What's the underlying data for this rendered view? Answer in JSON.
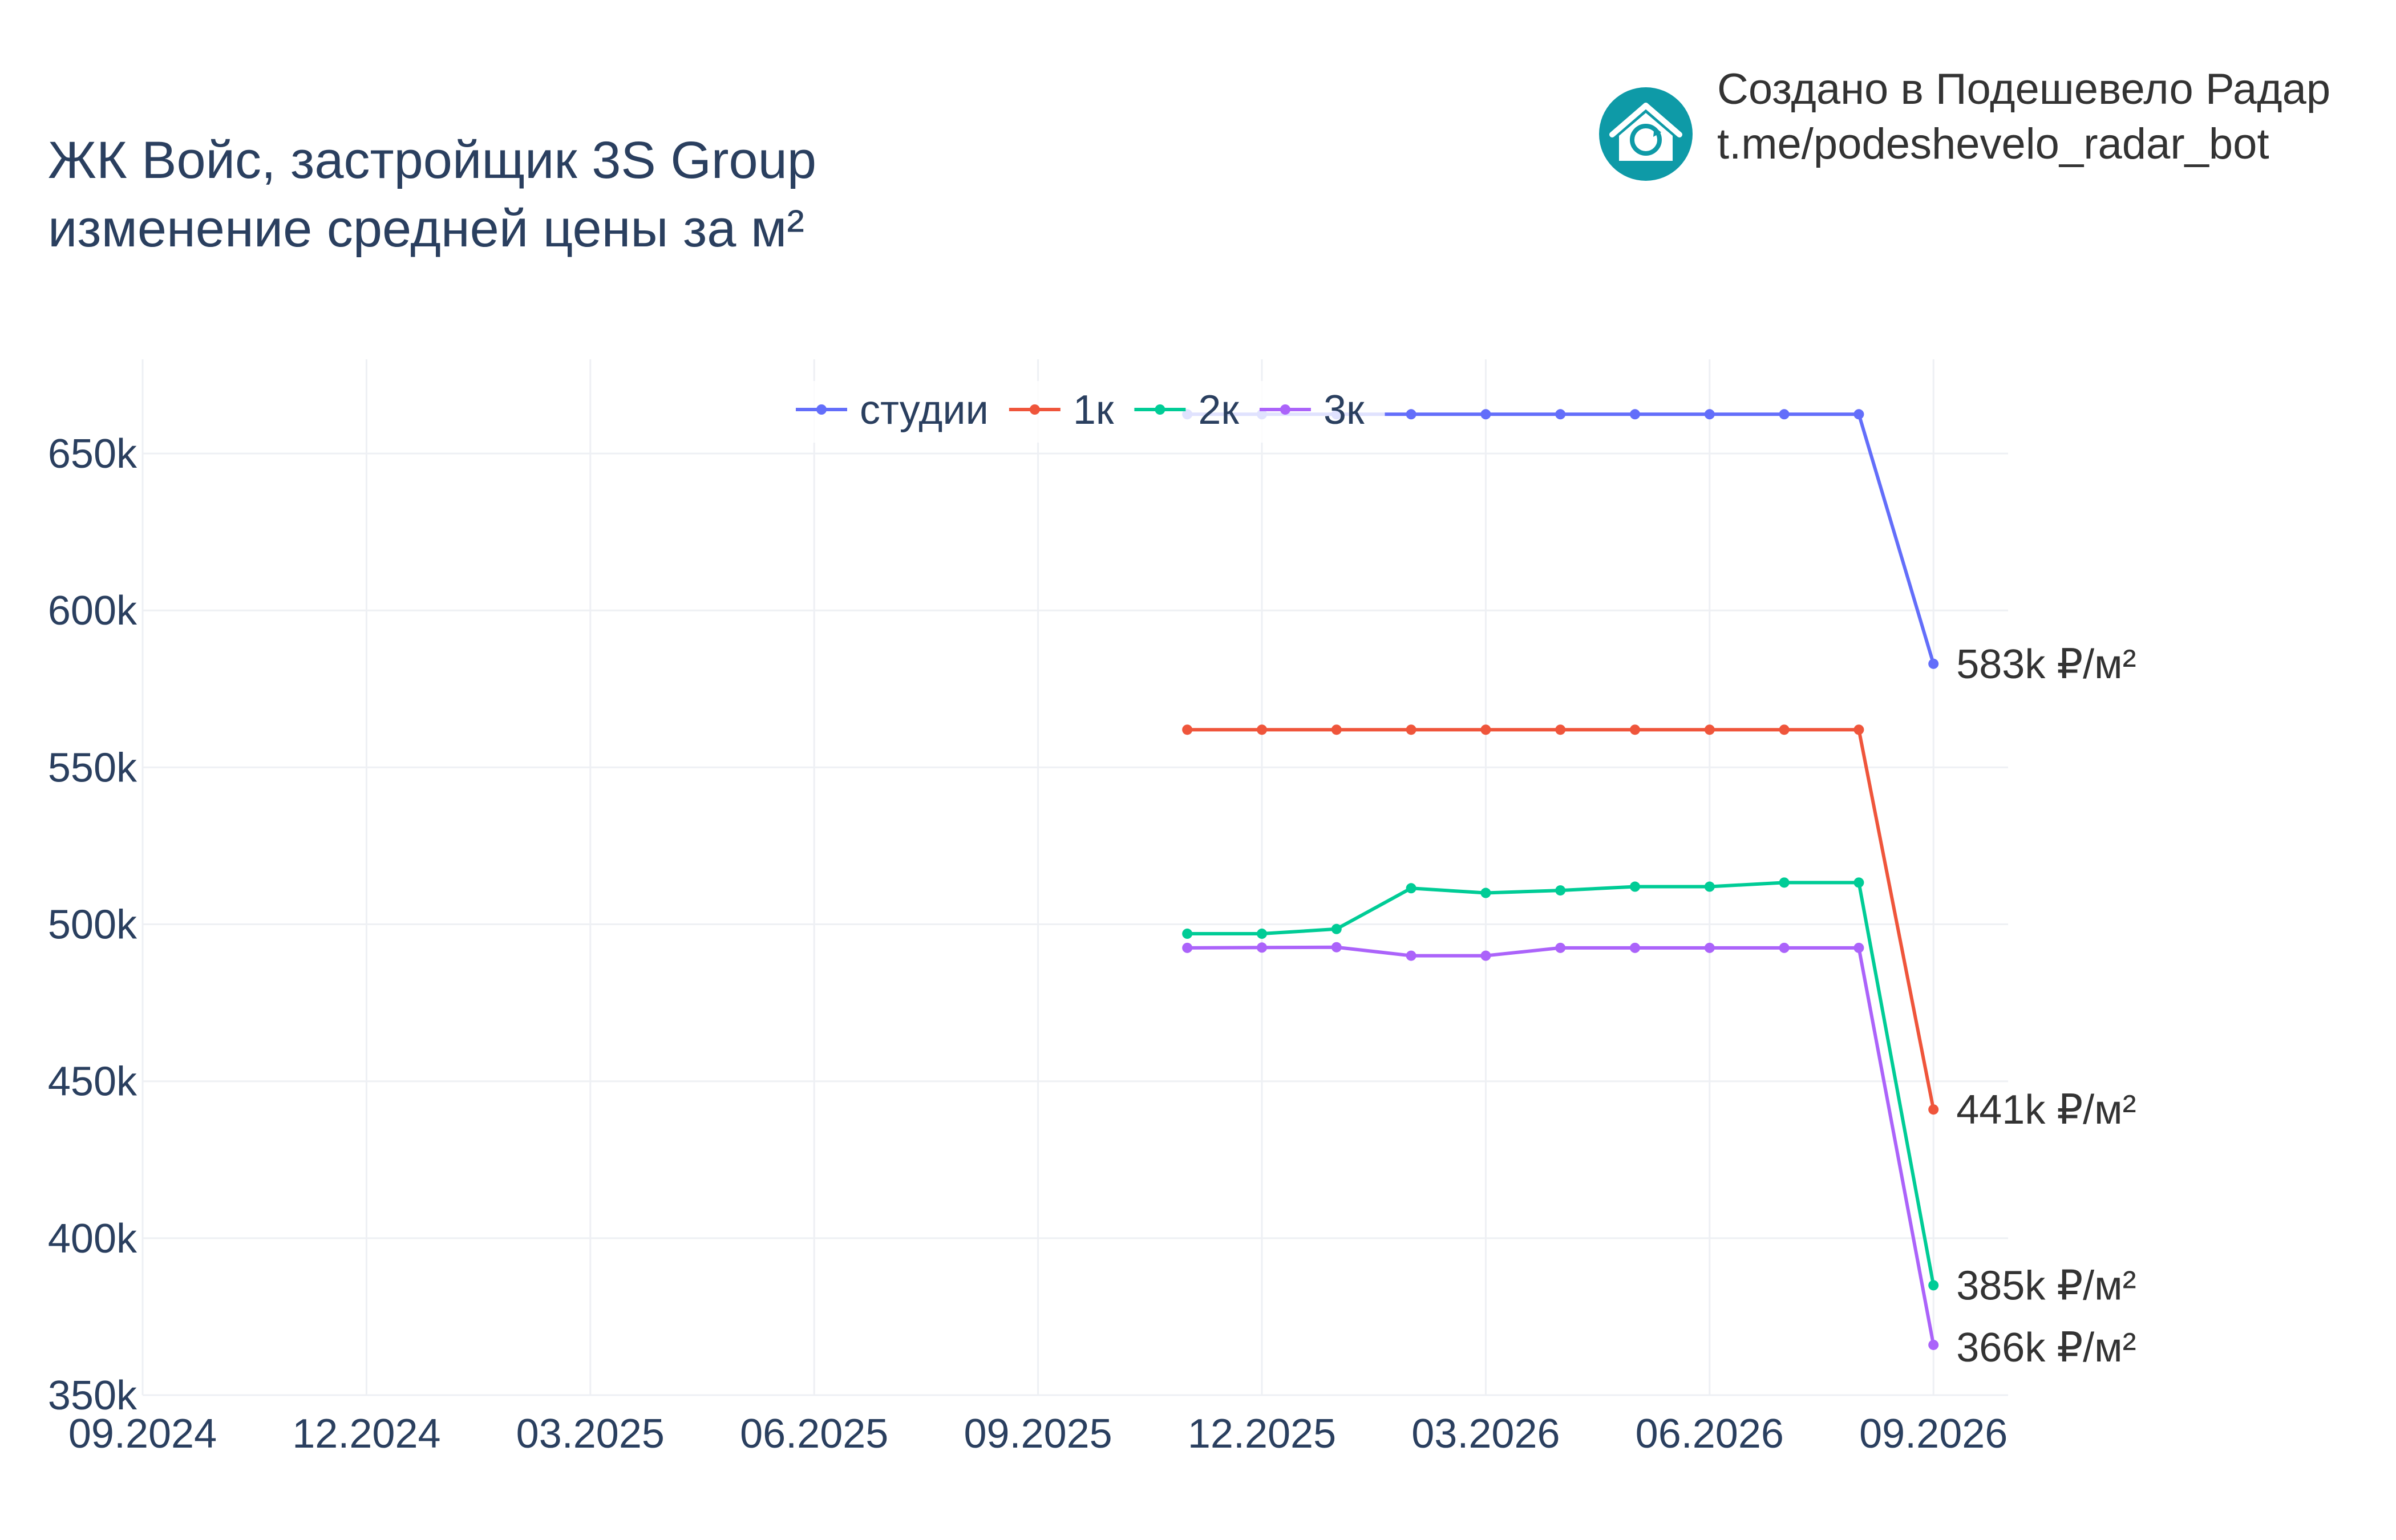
{
  "header": {
    "title_line1": "ЖК Войс, застройщик 3S Group",
    "title_line2": "изменение средней цены за м²"
  },
  "brand": {
    "line1": "Создано в Подешевело Радар",
    "line2": "t.me/podeshevelo_radar_bot",
    "logo_icon": "house-refresh-icon",
    "logo_color": "#0e9aa7"
  },
  "chart_data": {
    "type": "line",
    "title": "ЖК Войс, застройщик 3S Group изменение средней цены за м²",
    "x_ticks": [
      "09.2024",
      "12.2024",
      "03.2025",
      "06.2025",
      "09.2025",
      "12.2025",
      "03.2026",
      "06.2026",
      "09.2026"
    ],
    "y_ticks": [
      "350k",
      "400k",
      "450k",
      "500k",
      "550k",
      "600k",
      "650k"
    ],
    "ylim": [
      350000,
      680000
    ],
    "xlim": [
      "2024-09",
      "2026-10"
    ],
    "x": [
      "2025-11",
      "2025-12",
      "2026-01",
      "2026-02",
      "2026-03",
      "2026-04",
      "2026-05",
      "2026-06",
      "2026-07",
      "2026-08",
      "2026-09"
    ],
    "grid": true,
    "legend_position": "top-center",
    "series": [
      {
        "name": "студии",
        "color": "#636efa",
        "values": [
          662500,
          662500,
          662500,
          662500,
          662500,
          662500,
          662500,
          662500,
          662500,
          662500,
          583000
        ],
        "end_label": "583k ₽/м²"
      },
      {
        "name": "1к",
        "color": "#ef553b",
        "values": [
          562000,
          562000,
          562000,
          562000,
          562000,
          562000,
          562000,
          562000,
          562000,
          562000,
          441000
        ],
        "end_label": "441k ₽/м²"
      },
      {
        "name": "2к",
        "color": "#00cc96",
        "values": [
          497000,
          497000,
          498500,
          511500,
          510000,
          510800,
          512000,
          512000,
          513300,
          513300,
          385000
        ],
        "end_label": "385k ₽/м²"
      },
      {
        "name": "3к",
        "color": "#ab63fa",
        "values": [
          492500,
          492600,
          492700,
          490000,
          490000,
          492500,
          492500,
          492500,
          492500,
          492500,
          366000
        ],
        "end_label": "366k ₽/м²"
      }
    ]
  }
}
